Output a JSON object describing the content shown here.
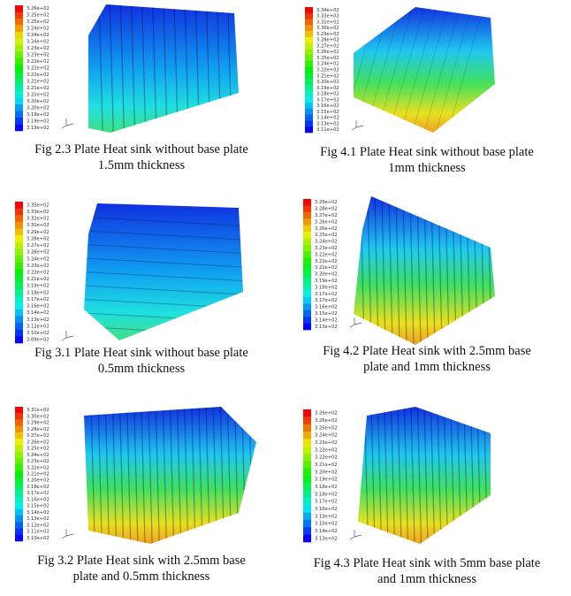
{
  "figures": [
    {
      "caption": [
        "Fig 2.3 Plate Heat sink without base plate",
        "1.5mm thickness"
      ],
      "legend": [
        "3.26e+02",
        "3.25e+02",
        "3.25e+02",
        "3.24e+02",
        "3.24e+02",
        "3.24e+02",
        "3.23e+02",
        "3.23e+02",
        "3.22e+02",
        "3.22e+02",
        "3.22e+02",
        "3.21e+02",
        "3.21e+02",
        "3.21e+02",
        "3.20e+02",
        "3.20e+02",
        "3.19e+02",
        "3.19e+02",
        "3.19e+02"
      ]
    },
    {
      "caption": [
        "Fig 4.1 Plate Heat sink without base plate",
        "1mm thickness"
      ],
      "legend": [
        "3.34e+02",
        "3.33e+02",
        "3.31e+02",
        "3.30e+02",
        "3.29e+02",
        "3.28e+02",
        "3.27e+02",
        "3.26e+02",
        "3.25e+02",
        "3.24e+02",
        "3.22e+02",
        "3.21e+02",
        "3.20e+02",
        "3.19e+02",
        "3.18e+02",
        "3.17e+02",
        "3.16e+02",
        "3.15e+02",
        "3.14e+02",
        "3.13e+02",
        "3.11e+02"
      ]
    },
    {
      "caption": [
        "Fig 3.1 Plate Heat sink without base plate",
        "0.5mm thickness"
      ],
      "legend": [
        "3.35e+02",
        "3.33e+02",
        "3.32e+02",
        "3.31e+02",
        "3.29e+02",
        "3.28e+02",
        "3.27e+02",
        "3.26e+02",
        "3.24e+02",
        "3.23e+02",
        "3.22e+02",
        "3.21e+02",
        "3.19e+02",
        "3.18e+02",
        "3.17e+02",
        "3.16e+02",
        "3.14e+02",
        "3.13e+02",
        "3.12e+02",
        "3.10e+02",
        "3.09e+02"
      ]
    },
    {
      "caption": [
        "Fig 4.2 Plate Heat sink with 2.5mm base",
        "plate and 1mm thickness"
      ],
      "legend": [
        "3.29e+02",
        "3.28e+02",
        "3.27e+02",
        "3.26e+02",
        "3.26e+02",
        "3.25e+02",
        "3.24e+02",
        "3.23e+02",
        "3.22e+02",
        "3.22e+02",
        "3.21e+02",
        "3.20e+02",
        "3.19e+02",
        "3.18e+02",
        "3.17e+02",
        "3.17e+02",
        "3.16e+02",
        "3.15e+02",
        "3.14e+02",
        "3.13e+02"
      ]
    },
    {
      "caption": [
        "Fig 3.2 Plate Heat sink with 2.5mm base",
        "plate and 0.5mm thickness"
      ],
      "legend": [
        "3.31e+02",
        "3.30e+02",
        "3.29e+02",
        "3.28e+02",
        "3.27e+02",
        "3.26e+02",
        "3.25e+02",
        "3.24e+02",
        "3.23e+02",
        "3.22e+02",
        "3.21e+02",
        "3.20e+02",
        "3.18e+02",
        "3.17e+02",
        "3.16e+02",
        "3.15e+02",
        "3.14e+02",
        "3.13e+02",
        "3.12e+02",
        "3.11e+02",
        "3.10e+02"
      ]
    },
    {
      "caption": [
        "Fig 4.3 Plate Heat sink with 5mm base plate",
        "and 1mm thickness"
      ],
      "legend": [
        "3.26e+02",
        "3.26e+02",
        "3.25e+02",
        "3.24e+02",
        "3.23e+02",
        "3.22e+02",
        "3.22e+02",
        "3.21e+02",
        "3.20e+02",
        "3.19e+02",
        "3.18e+02",
        "3.18e+02",
        "3.17e+02",
        "3.16e+02",
        "3.15e+02",
        "3.15e+02",
        "3.14e+02",
        "3.13e+02"
      ]
    }
  ]
}
